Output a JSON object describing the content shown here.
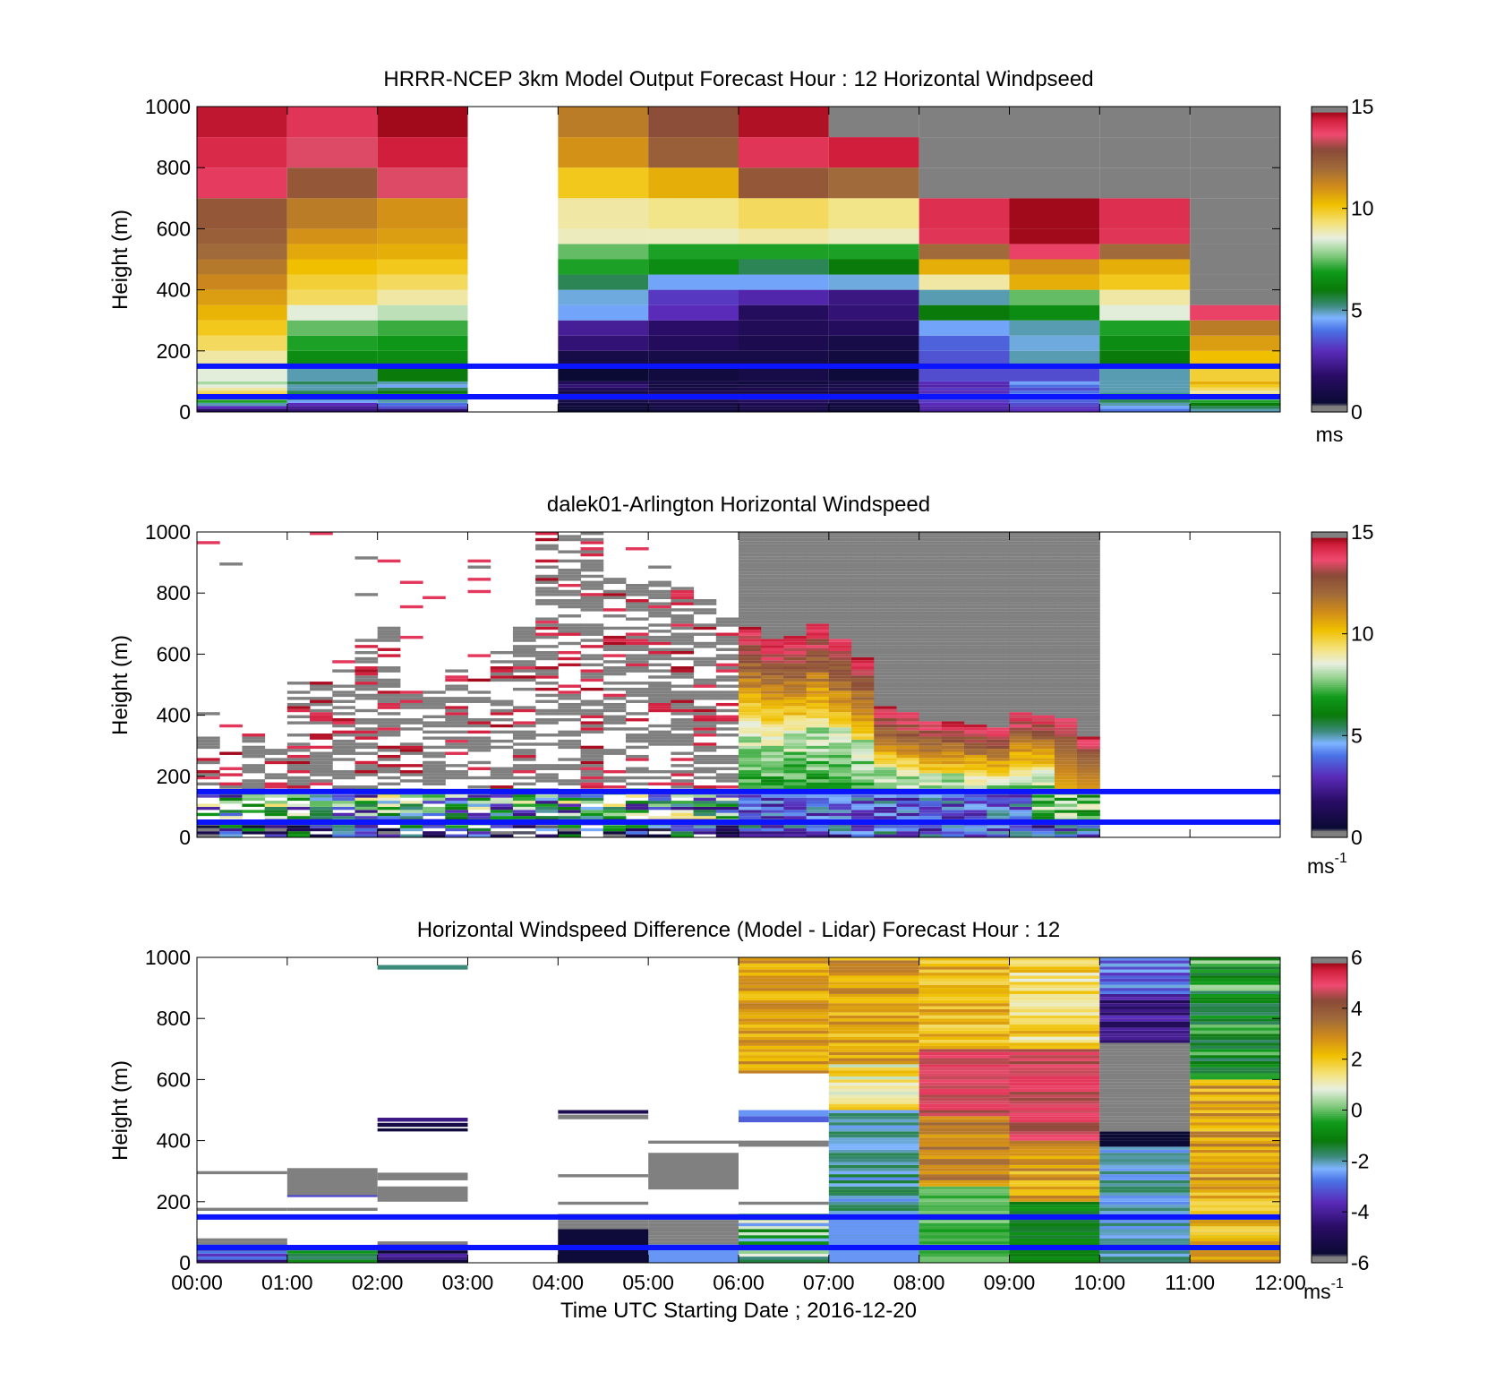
{
  "figure": {
    "xaxis_title": "Time UTC  Starting Date ; 2016-12-20",
    "time_ticks": [
      "00:00",
      "01:00",
      "02:00",
      "03:00",
      "04:00",
      "05:00",
      "06:00",
      "07:00",
      "08:00",
      "09:00",
      "10:00",
      "11:00",
      "12:00"
    ]
  },
  "colormaps": {
    "speed": {
      "stops": [
        [
          0.0,
          "#808080"
        ],
        [
          0.02,
          "#808080"
        ],
        [
          0.03,
          "#0a0a33"
        ],
        [
          0.12,
          "#2a0d66"
        ],
        [
          0.2,
          "#5a2bb8"
        ],
        [
          0.27,
          "#4a73e6"
        ],
        [
          0.31,
          "#7fb4ff"
        ],
        [
          0.35,
          "#3c8a7a"
        ],
        [
          0.4,
          "#0a7a0a"
        ],
        [
          0.46,
          "#0f9a1a"
        ],
        [
          0.52,
          "#8fcf8a"
        ],
        [
          0.57,
          "#e8efe0"
        ],
        [
          0.62,
          "#f4e27a"
        ],
        [
          0.68,
          "#f0c000"
        ],
        [
          0.74,
          "#d08b1a"
        ],
        [
          0.8,
          "#a06a3a"
        ],
        [
          0.86,
          "#8a4a38"
        ],
        [
          0.91,
          "#f04a70"
        ],
        [
          0.96,
          "#d01e3c"
        ],
        [
          0.98,
          "#a00a1a"
        ],
        [
          0.985,
          "#808080"
        ],
        [
          1.0,
          "#808080"
        ]
      ]
    }
  },
  "chart_data": [
    {
      "type": "heatmap",
      "title": "HRRR-NCEP 3km Model Output   Forecast Hour : 12 Horizontal Windpseed",
      "ylabel": "Height (m)",
      "ylim": [
        0,
        1000
      ],
      "yticks": [
        "0",
        "200",
        "400",
        "600",
        "800",
        "1000"
      ],
      "xlim": [
        0,
        12
      ],
      "colorbar": {
        "ticks": [
          "0",
          "5",
          "10",
          "15"
        ],
        "range": [
          0,
          15
        ],
        "unit": "ms"
      },
      "reference_lines_m": [
        150,
        50
      ],
      "reference_line_color": "#0a14ff",
      "time_columns_h": [
        0,
        1,
        2,
        3,
        4,
        5,
        6,
        7,
        8,
        9,
        10,
        11
      ],
      "height_levels_m": [
        0,
        10,
        20,
        30,
        40,
        50,
        60,
        70,
        80,
        90,
        100,
        150,
        200,
        250,
        300,
        350,
        400,
        450,
        500,
        550,
        600,
        700,
        800,
        900,
        1000
      ],
      "values": [
        [
          1.5,
          2.0,
          1.8,
          null,
          0.5,
          0.8,
          1.0,
          0.6,
          2.5,
          3.0,
          4.0,
          5.0
        ],
        [
          3.0,
          2.5,
          3.5,
          null,
          0.6,
          0.9,
          1.1,
          0.7,
          2.8,
          3.2,
          4.5,
          5.5
        ],
        [
          5.0,
          3.0,
          4.0,
          null,
          0.8,
          1.0,
          1.3,
          0.9,
          3.0,
          3.5,
          5.0,
          6.0
        ],
        [
          7.0,
          4.5,
          5.0,
          null,
          1.0,
          1.2,
          1.6,
          1.0,
          3.2,
          3.8,
          5.5,
          7.0
        ],
        [
          9.0,
          6.0,
          6.5,
          null,
          1.2,
          1.4,
          1.8,
          1.2,
          3.5,
          4.0,
          6.5,
          8.5
        ],
        [
          10.0,
          6.5,
          7.0,
          null,
          1.4,
          1.6,
          2.0,
          1.4,
          3.8,
          4.5,
          7.0,
          9.5
        ],
        [
          9.5,
          5.5,
          6.0,
          null,
          1.0,
          1.2,
          1.0,
          1.0,
          3.0,
          4.0,
          5.0,
          9.0
        ],
        [
          9.0,
          5.0,
          5.5,
          null,
          1.5,
          1.0,
          1.2,
          1.2,
          3.2,
          3.5,
          5.0,
          9.5
        ],
        [
          8.5,
          5.0,
          4.5,
          null,
          2.0,
          0.8,
          1.0,
          1.0,
          2.8,
          4.0,
          5.0,
          10.0
        ],
        [
          8.0,
          5.5,
          5.0,
          null,
          1.5,
          1.0,
          0.8,
          1.0,
          3.0,
          4.5,
          5.0,
          10.5
        ],
        [
          8.5,
          5.0,
          6.0,
          null,
          0.5,
          0.8,
          1.0,
          0.6,
          3.5,
          3.5,
          5.0,
          9.8
        ],
        [
          9.0,
          6.5,
          6.5,
          null,
          1.0,
          1.0,
          1.0,
          0.8,
          3.6,
          5.0,
          6.0,
          10.2
        ],
        [
          9.5,
          7.0,
          6.8,
          null,
          2.0,
          1.5,
          1.2,
          1.0,
          3.8,
          4.8,
          6.5,
          10.8
        ],
        [
          10.0,
          7.5,
          7.2,
          null,
          2.5,
          1.8,
          1.4,
          1.6,
          4.5,
          5.0,
          7.0,
          11.5
        ],
        [
          10.4,
          8.5,
          8.2,
          null,
          4.5,
          3.0,
          1.6,
          2.0,
          6.0,
          6.5,
          8.5,
          13.8
        ],
        [
          10.8,
          9.5,
          9.0,
          null,
          4.8,
          3.2,
          2.8,
          2.2,
          5.0,
          7.5,
          9.0,
          0.0
        ],
        [
          11.2,
          9.8,
          9.5,
          null,
          5.5,
          4.5,
          4.5,
          4.8,
          9.0,
          10.5,
          10.0,
          0.0
        ],
        [
          11.6,
          10.2,
          10.0,
          null,
          7.0,
          6.5,
          5.5,
          6.0,
          10.5,
          11.0,
          10.5,
          0.0
        ],
        [
          12.0,
          10.6,
          10.5,
          null,
          7.5,
          7.0,
          7.0,
          7.0,
          12.0,
          13.8,
          12.0,
          0.0
        ],
        [
          12.3,
          11.0,
          10.8,
          null,
          8.8,
          8.8,
          9.0,
          8.8,
          14.0,
          14.7,
          14.0,
          0.0
        ],
        [
          12.5,
          11.5,
          11.0,
          null,
          9.0,
          9.2,
          9.5,
          9.2,
          14.1,
          14.7,
          14.1,
          0.0
        ],
        [
          13.9,
          12.5,
          13.5,
          null,
          10.0,
          10.5,
          12.5,
          12.0,
          0.0,
          0.0,
          0.0,
          0.0
        ],
        [
          14.2,
          13.5,
          14.4,
          null,
          11.0,
          12.3,
          14.0,
          14.4,
          0.0,
          0.0,
          0.0,
          0.0
        ],
        [
          14.5,
          14.0,
          14.7,
          null,
          11.5,
          12.8,
          14.6,
          0.0,
          0.0,
          0.0,
          0.0,
          0.0
        ],
        [
          14.6,
          14.1,
          14.6,
          null,
          12.5,
          13.6,
          14.6,
          0.0,
          0.0,
          0.0,
          0.0,
          0.0
        ]
      ]
    },
    {
      "type": "heatmap",
      "title": "dalek01-Arlington  Horizontal Windspeed",
      "ylabel": "Height (m)",
      "ylim": [
        0,
        1000
      ],
      "yticks": [
        "0",
        "200",
        "400",
        "600",
        "800",
        "1000"
      ],
      "xlim": [
        0,
        12
      ],
      "colorbar": {
        "ticks": [
          "0",
          "5",
          "10",
          "15"
        ],
        "range": [
          0,
          15
        ],
        "unit": "ms",
        "unit_exponent": "-1"
      },
      "reference_lines_m": [
        150,
        50
      ],
      "reference_line_color": "#0a14ff",
      "profile_top_m": [
        330,
        300,
        340,
        300,
        520,
        530,
        500,
        660,
        700,
        480,
        480,
        550,
        520,
        640,
        690,
        1000,
        1000,
        1000,
        870,
        850,
        860,
        820,
        780,
        730,
        690,
        650,
        660,
        700,
        650,
        590,
        430,
        410,
        380,
        380,
        370,
        360,
        410,
        400,
        390,
        330
      ],
      "column_step_h": 0.25
    },
    {
      "type": "heatmap",
      "title": "Horizontal Windspeed Difference (Model - Lidar) Forecast Hour : 12",
      "ylabel": "Height (m)",
      "ylim": [
        0,
        1000
      ],
      "yticks": [
        "0",
        "200",
        "400",
        "600",
        "800",
        "1000"
      ],
      "xlim": [
        0,
        12
      ],
      "colorbar": {
        "ticks": [
          "-6",
          "-4",
          "-2",
          "0",
          "2",
          "4",
          "6"
        ],
        "range": [
          -6,
          6
        ],
        "unit": "ms",
        "unit_exponent": "-1"
      },
      "reference_lines_m": [
        150,
        50
      ],
      "reference_line_color": "#0a14ff"
    }
  ]
}
